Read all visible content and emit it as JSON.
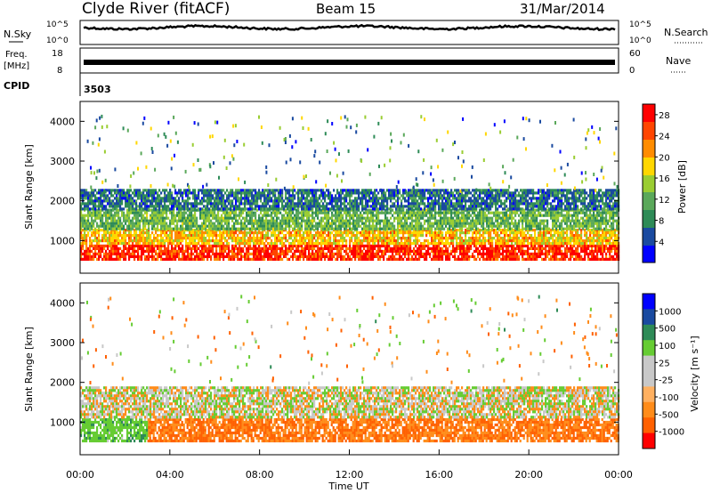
{
  "header": {
    "station": "Clyde River (fitACF)",
    "beam": "Beam 15",
    "date": "31/Mar/2014"
  },
  "noise_panel": {
    "left_label": "N.Sky",
    "right_label": "N.Search",
    "tick_top_left": "10^5",
    "tick_bottom_left": "10^0",
    "tick_top_right": "10^5",
    "tick_bottom_right": "10^0"
  },
  "freq_panel": {
    "left_label_1": "Freq.",
    "left_label_2": "[MHz]",
    "right_label": "Nave",
    "left_ticks": [
      "18",
      "8"
    ],
    "right_ticks": [
      "60",
      "0"
    ]
  },
  "cpid": {
    "label": "CPID",
    "value": "3503"
  },
  "colors": {
    "power_scale": [
      "#0000ff",
      "#1a4aa0",
      "#2e8b57",
      "#5aa85a",
      "#9acd32",
      "#ffd700",
      "#ff8c00",
      "#ff4500",
      "#ff0000"
    ],
    "velocity_scale": [
      "#ff0000",
      "#ff6000",
      "#ff8c1a",
      "#ffb060",
      "#c8c8c8",
      "#c8c8c8",
      "#66cc33",
      "#2e8b57",
      "#1a4aa0",
      "#0000ff"
    ]
  },
  "chart_data": [
    {
      "type": "heatmap",
      "name": "power",
      "ylabel": "Slant Range [km]",
      "ylim": [
        180,
        4500
      ],
      "xlim_hours": [
        0,
        24
      ],
      "y_ticks": [
        "1000",
        "2000",
        "3000",
        "4000"
      ],
      "colorbar_label": "Power [dB]",
      "colorbar_ticks": [
        "4",
        "8",
        "12",
        "16",
        "20",
        "24",
        "28"
      ],
      "colorbar_range": [
        0,
        30
      ],
      "regions": [
        {
          "range_km": [
            500,
            900
          ],
          "value_dB": 28,
          "hours": [
            0,
            24
          ]
        },
        {
          "range_km": [
            900,
            1300
          ],
          "value_dB": 20,
          "hours": [
            0,
            24
          ]
        },
        {
          "range_km": [
            1300,
            1800
          ],
          "value_dB": 12,
          "hours": [
            0,
            24
          ]
        },
        {
          "range_km": [
            1800,
            2300
          ],
          "value_dB": 6,
          "hours": [
            0,
            24
          ]
        }
      ]
    },
    {
      "type": "heatmap",
      "name": "velocity",
      "ylabel": "Slant Range [km]",
      "xlabel": "Time UT",
      "ylim": [
        180,
        4500
      ],
      "xlim_hours": [
        0,
        24
      ],
      "y_ticks": [
        "1000",
        "2000",
        "3000",
        "4000"
      ],
      "x_ticks": [
        "00:00",
        "04:00",
        "08:00",
        "12:00",
        "16:00",
        "20:00",
        "00:00"
      ],
      "colorbar_label": "Velocity [m s⁻¹]",
      "colorbar_ticks": [
        "1000",
        "500",
        "100",
        "25",
        "-25",
        "-100",
        "-500",
        "-1000"
      ],
      "regions": [
        {
          "range_km": [
            500,
            1100
          ],
          "value_ms": -300,
          "hours": [
            3,
            24
          ]
        },
        {
          "range_km": [
            500,
            1100
          ],
          "value_ms": 200,
          "hours": [
            0,
            3
          ]
        },
        {
          "range_km": [
            1100,
            1900
          ],
          "value_ms": 0,
          "hours": [
            0,
            24
          ]
        }
      ]
    }
  ]
}
